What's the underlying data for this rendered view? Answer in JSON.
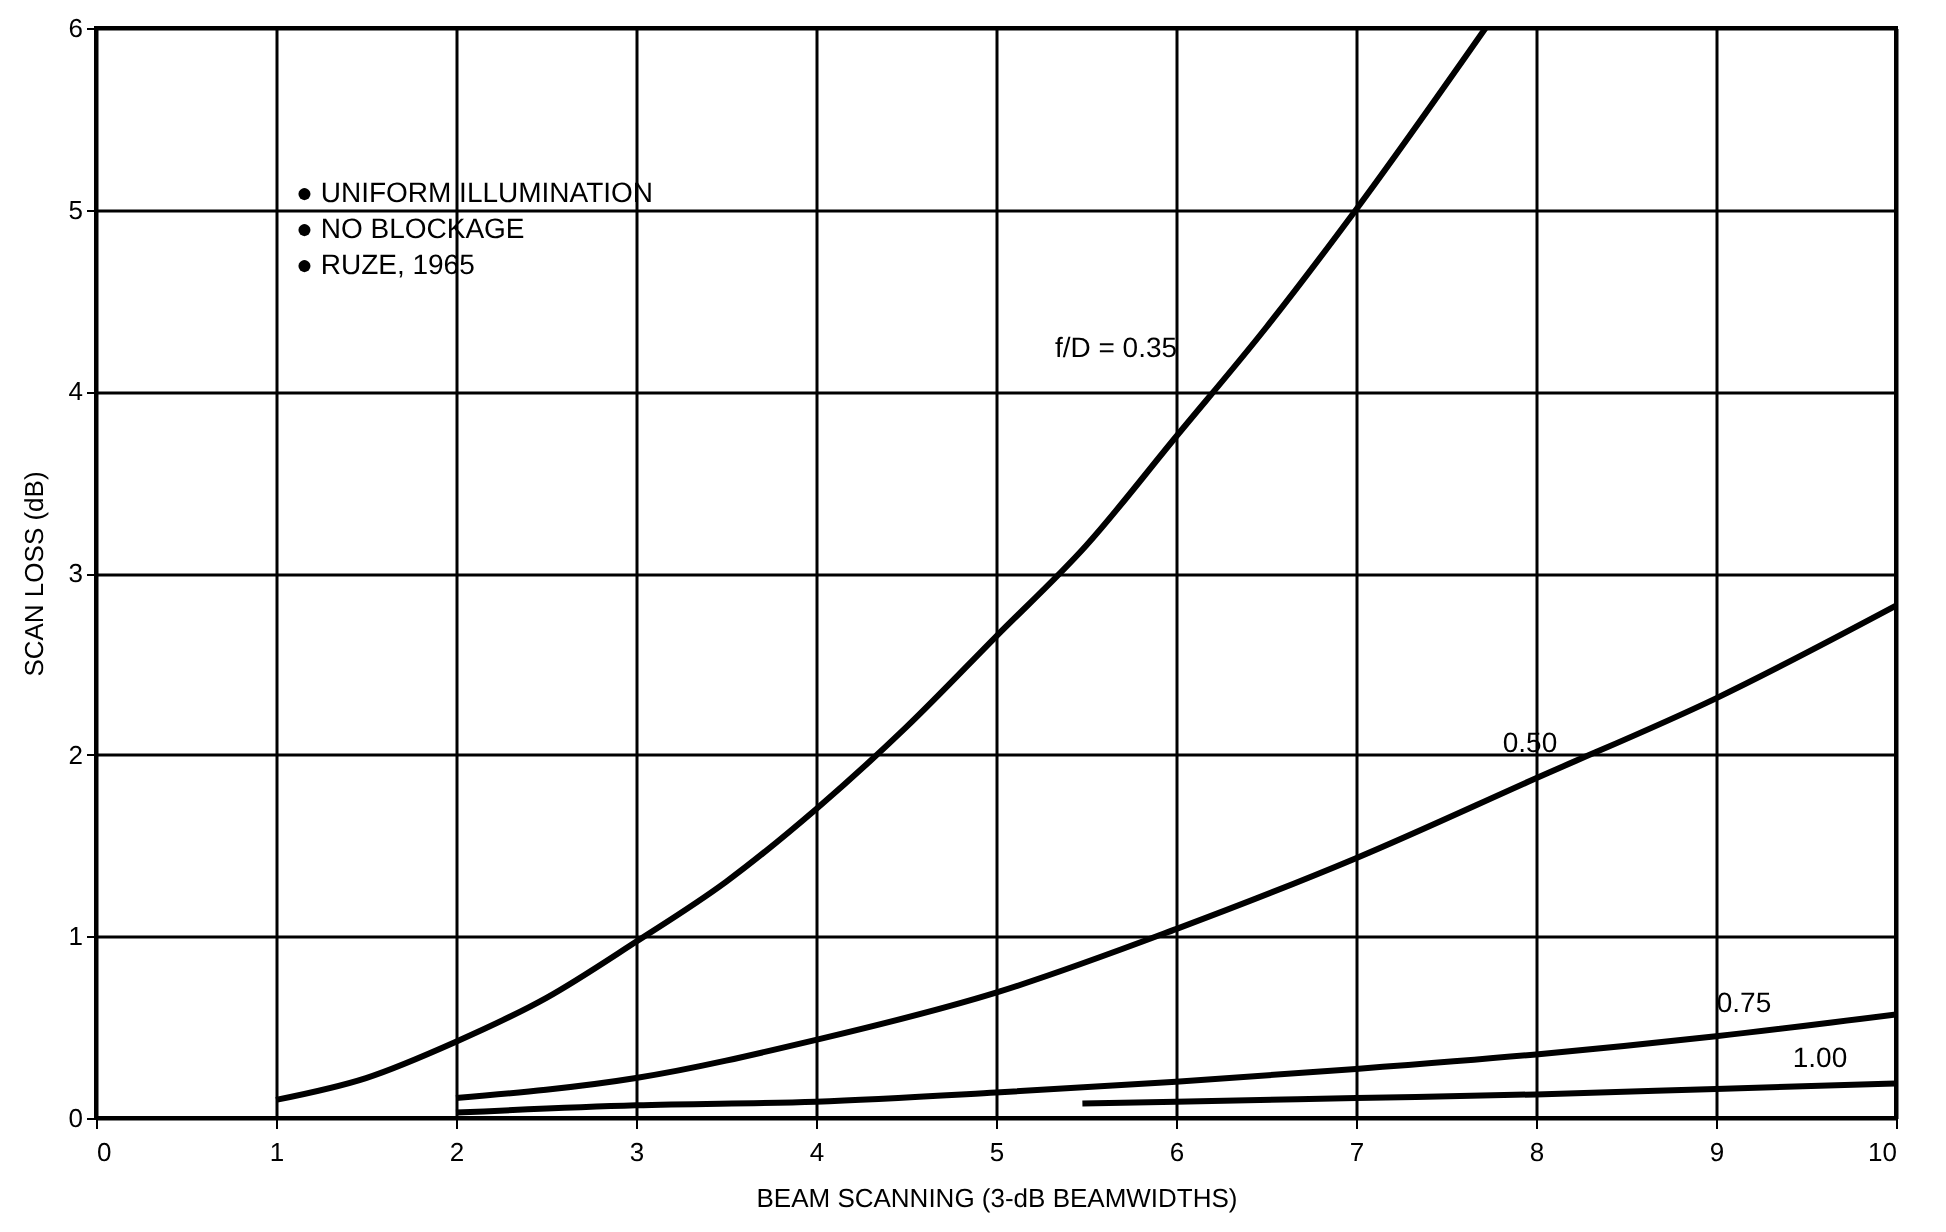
{
  "chart_data": {
    "type": "line",
    "xlabel": "BEAM SCANNING  (3-dB BEAMWIDTHS)",
    "ylabel": "SCAN LOSS  (dB)",
    "xlim": [
      0,
      10
    ],
    "ylim": [
      0,
      6
    ],
    "xticks": [
      0,
      1,
      2,
      3,
      4,
      5,
      6,
      7,
      8,
      9,
      10
    ],
    "yticks": [
      0,
      1,
      2,
      3,
      4,
      5,
      6
    ],
    "grid": true,
    "line_style": "solid",
    "series": [
      {
        "name": "f/D = 0.35",
        "color": "#000000",
        "x": [
          1,
          1.5,
          2,
          2.5,
          3,
          3.5,
          4,
          4.5,
          5,
          5.5,
          6,
          6.5,
          7,
          7.72
        ],
        "values": [
          0.1,
          0.22,
          0.42,
          0.66,
          0.97,
          1.3,
          1.7,
          2.15,
          2.65,
          3.15,
          3.75,
          4.35,
          5.0,
          6.0
        ]
      },
      {
        "name": "0.50",
        "color": "#000000",
        "x": [
          2,
          3,
          4,
          5,
          6,
          7,
          8,
          9,
          10
        ],
        "values": [
          0.11,
          0.22,
          0.43,
          0.69,
          1.04,
          1.43,
          1.87,
          2.31,
          2.82
        ]
      },
      {
        "name": "0.75",
        "color": "#000000",
        "x": [
          2,
          3,
          4,
          5,
          6,
          7,
          8,
          9,
          10
        ],
        "values": [
          0.03,
          0.07,
          0.09,
          0.14,
          0.2,
          0.27,
          0.35,
          0.45,
          0.57
        ]
      },
      {
        "name": "1.00",
        "color": "#000000",
        "x": [
          5.48,
          6,
          7,
          8,
          9,
          10
        ],
        "values": [
          0.08,
          0.09,
          0.11,
          0.13,
          0.16,
          0.19
        ]
      }
    ],
    "annotations": [
      "● UNIFORM ILLUMINATION",
      "● NO BLOCKAGE",
      "● RUZE, 1965"
    ]
  }
}
